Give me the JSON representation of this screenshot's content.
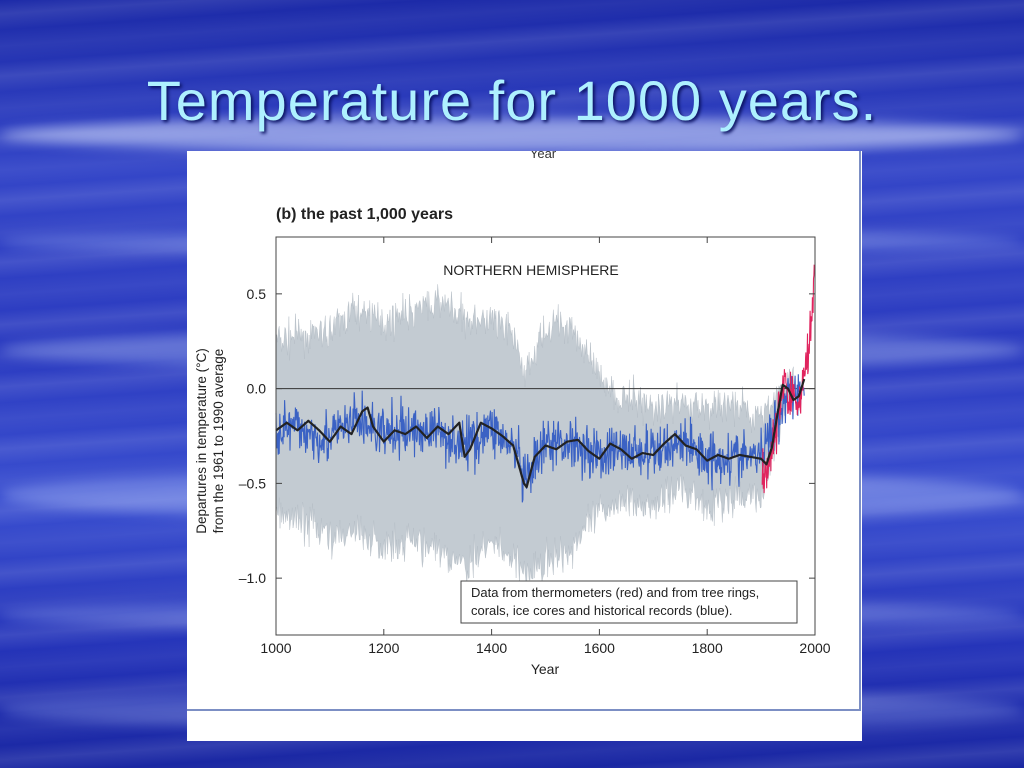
{
  "slide": {
    "title": "Temperature for 1000 years.",
    "background_color": "#2b3bc0",
    "title_color": "#aef0ff"
  },
  "chart_data": {
    "type": "line",
    "cropped_top_label": "Year",
    "panel_label": "(b) the past 1,000 years",
    "region_label": "NORTHERN HEMISPHERE",
    "xlabel": "Year",
    "ylabel_line1": "Departures in temperature (°C)",
    "ylabel_line2": "from the 1961 to 1990 average",
    "xlim": [
      1000,
      2000
    ],
    "ylim": [
      -1.3,
      0.8
    ],
    "x_ticks": [
      1000,
      1200,
      1400,
      1600,
      1800,
      2000
    ],
    "x_tick_labels": [
      "1000",
      "1200",
      "1400",
      "1600",
      "1800",
      "2000"
    ],
    "y_ticks": [
      0.5,
      0.0,
      -0.5,
      -1.0
    ],
    "y_tick_labels": [
      "0.5",
      "0.0",
      "–0.5",
      "–1.0"
    ],
    "reference_line": 0.0,
    "legend": {
      "line1": "Data from thermometers (red) and from tree rings,",
      "line2": "corals, ice cores and historical records (blue).",
      "placement": "bottom-right"
    },
    "colors": {
      "uncertainty": "#c3cbd2",
      "proxy": "#3b62c4",
      "instrumental": "#e0245e",
      "smoothed": "#222222"
    },
    "series": [
      {
        "name": "Smoothed",
        "x": [
          1000,
          1020,
          1040,
          1060,
          1080,
          1100,
          1120,
          1140,
          1160,
          1170,
          1180,
          1200,
          1220,
          1240,
          1260,
          1280,
          1300,
          1320,
          1340,
          1350,
          1360,
          1380,
          1400,
          1420,
          1440,
          1460,
          1465,
          1480,
          1500,
          1520,
          1540,
          1560,
          1580,
          1600,
          1620,
          1640,
          1660,
          1680,
          1700,
          1720,
          1740,
          1760,
          1780,
          1800,
          1820,
          1840,
          1860,
          1880,
          1900,
          1910,
          1920,
          1930,
          1940,
          1950,
          1960,
          1970,
          1980
        ],
        "y": [
          -0.22,
          -0.18,
          -0.22,
          -0.17,
          -0.22,
          -0.28,
          -0.2,
          -0.24,
          -0.12,
          -0.1,
          -0.2,
          -0.28,
          -0.22,
          -0.24,
          -0.2,
          -0.26,
          -0.2,
          -0.24,
          -0.18,
          -0.36,
          -0.32,
          -0.18,
          -0.21,
          -0.25,
          -0.3,
          -0.5,
          -0.52,
          -0.36,
          -0.3,
          -0.32,
          -0.28,
          -0.27,
          -0.33,
          -0.37,
          -0.29,
          -0.32,
          -0.37,
          -0.34,
          -0.35,
          -0.29,
          -0.24,
          -0.3,
          -0.32,
          -0.38,
          -0.35,
          -0.37,
          -0.35,
          -0.36,
          -0.37,
          -0.4,
          -0.31,
          -0.14,
          0.02,
          0.0,
          -0.06,
          -0.04,
          0.05
        ]
      },
      {
        "name": "Proxy envelope",
        "x": [
          1000,
          1050,
          1100,
          1150,
          1200,
          1250,
          1300,
          1350,
          1400,
          1450,
          1460,
          1500,
          1550,
          1600,
          1650,
          1700,
          1750,
          1800,
          1850,
          1900,
          1950
        ],
        "y": [
          -0.2,
          -0.22,
          -0.26,
          -0.16,
          -0.24,
          -0.22,
          -0.22,
          -0.3,
          -0.2,
          -0.35,
          -0.52,
          -0.3,
          -0.28,
          -0.35,
          -0.32,
          -0.35,
          -0.27,
          -0.36,
          -0.36,
          -0.36,
          0.0
        ],
        "upper": [
          0.25,
          0.28,
          0.3,
          0.42,
          0.36,
          0.4,
          0.46,
          0.38,
          0.36,
          0.24,
          0.04,
          0.32,
          0.34,
          0.05,
          -0.05,
          -0.1,
          -0.06,
          -0.1,
          -0.1,
          -0.16,
          0.05
        ],
        "lower": [
          -0.66,
          -0.7,
          -0.78,
          -0.76,
          -0.84,
          -0.8,
          -0.86,
          -0.94,
          -0.82,
          -0.92,
          -1.0,
          -0.9,
          -0.85,
          -0.65,
          -0.6,
          -0.62,
          -0.52,
          -0.62,
          -0.58,
          -0.56,
          -0.05
        ]
      },
      {
        "name": "Instrumental",
        "x": [
          1902,
          1910,
          1920,
          1930,
          1940,
          1945,
          1950,
          1960,
          1970,
          1980,
          1985,
          1990,
          1995,
          1999
        ],
        "y": [
          -0.46,
          -0.44,
          -0.3,
          -0.2,
          0.03,
          0.07,
          -0.08,
          -0.02,
          -0.1,
          0.1,
          0.14,
          0.25,
          0.4,
          0.68
        ]
      }
    ]
  }
}
